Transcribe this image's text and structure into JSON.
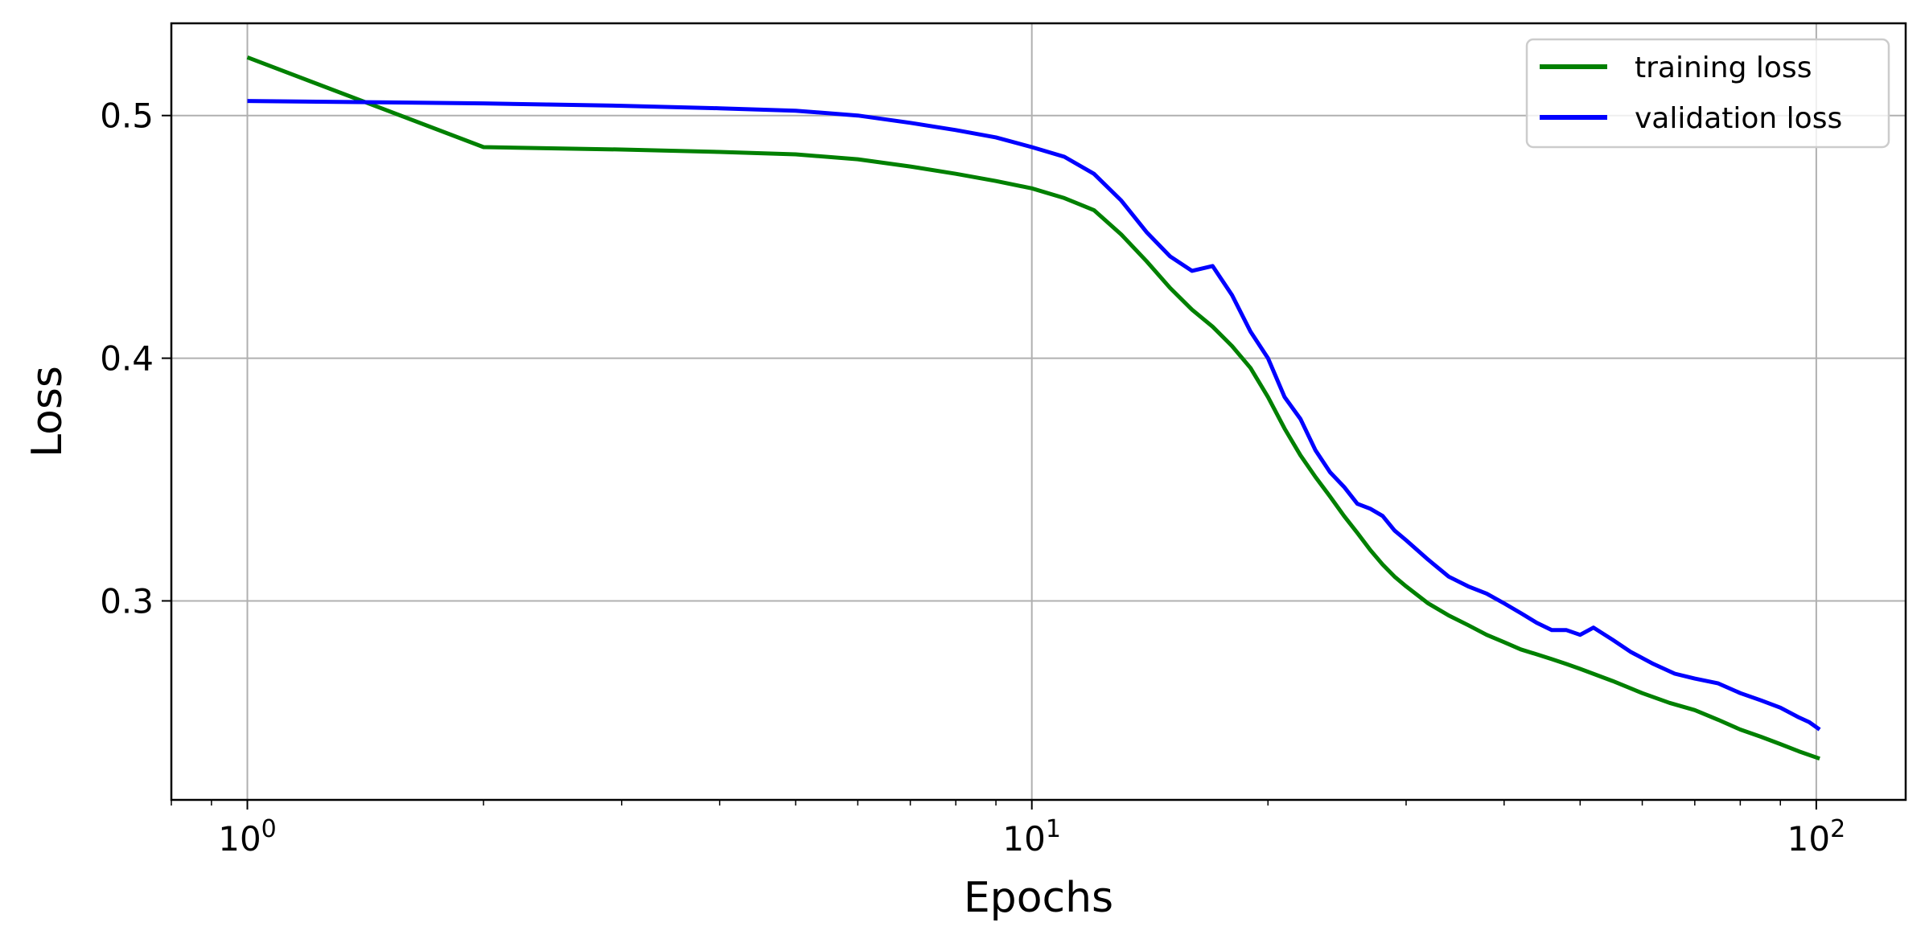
{
  "chart_data": {
    "type": "line",
    "xscale": "log",
    "xlabel": "Epochs",
    "ylabel": "Loss",
    "xlim": [
      0.8,
      130
    ],
    "ylim": [
      0.218,
      0.538
    ],
    "grid": true,
    "legend_position": "top-right",
    "x_ticks": [
      {
        "base": "10",
        "exp": "0",
        "value": 1
      },
      {
        "base": "10",
        "exp": "1",
        "value": 10
      },
      {
        "base": "10",
        "exp": "2",
        "value": 100
      }
    ],
    "y_ticks": [
      {
        "label": "0.3",
        "value": 0.3
      },
      {
        "label": "0.4",
        "value": 0.4
      },
      {
        "label": "0.5",
        "value": 0.5
      }
    ],
    "series": [
      {
        "name": "training loss",
        "color": "#008000",
        "points": [
          [
            1,
            0.524
          ],
          [
            2,
            0.487
          ],
          [
            3,
            0.486
          ],
          [
            4,
            0.485
          ],
          [
            5,
            0.484
          ],
          [
            6,
            0.482
          ],
          [
            7,
            0.479
          ],
          [
            8,
            0.476
          ],
          [
            9,
            0.473
          ],
          [
            10,
            0.47
          ],
          [
            11,
            0.466
          ],
          [
            12,
            0.461
          ],
          [
            13,
            0.451
          ],
          [
            14,
            0.44
          ],
          [
            15,
            0.429
          ],
          [
            16,
            0.42
          ],
          [
            17,
            0.413
          ],
          [
            18,
            0.405
          ],
          [
            19,
            0.396
          ],
          [
            20,
            0.384
          ],
          [
            21,
            0.371
          ],
          [
            22,
            0.36
          ],
          [
            23,
            0.351
          ],
          [
            24,
            0.343
          ],
          [
            25,
            0.335
          ],
          [
            26,
            0.328
          ],
          [
            27,
            0.321
          ],
          [
            28,
            0.315
          ],
          [
            29,
            0.31
          ],
          [
            30,
            0.306
          ],
          [
            32,
            0.299
          ],
          [
            34,
            0.294
          ],
          [
            36,
            0.29
          ],
          [
            38,
            0.286
          ],
          [
            40,
            0.283
          ],
          [
            42,
            0.28
          ],
          [
            44,
            0.278
          ],
          [
            46,
            0.276
          ],
          [
            48,
            0.274
          ],
          [
            50,
            0.272
          ],
          [
            55,
            0.267
          ],
          [
            60,
            0.262
          ],
          [
            65,
            0.258
          ],
          [
            70,
            0.255
          ],
          [
            75,
            0.251
          ],
          [
            80,
            0.247
          ],
          [
            85,
            0.244
          ],
          [
            90,
            0.241
          ],
          [
            95,
            0.238
          ],
          [
            101,
            0.235
          ]
        ]
      },
      {
        "name": "validation loss",
        "color": "#0000ff",
        "points": [
          [
            1,
            0.506
          ],
          [
            2,
            0.505
          ],
          [
            3,
            0.504
          ],
          [
            4,
            0.503
          ],
          [
            5,
            0.502
          ],
          [
            6,
            0.5
          ],
          [
            7,
            0.497
          ],
          [
            8,
            0.494
          ],
          [
            9,
            0.491
          ],
          [
            10,
            0.487
          ],
          [
            11,
            0.483
          ],
          [
            12,
            0.476
          ],
          [
            13,
            0.465
          ],
          [
            14,
            0.452
          ],
          [
            15,
            0.442
          ],
          [
            16,
            0.436
          ],
          [
            17,
            0.438
          ],
          [
            18,
            0.426
          ],
          [
            19,
            0.411
          ],
          [
            20,
            0.4
          ],
          [
            21,
            0.384
          ],
          [
            22,
            0.375
          ],
          [
            23,
            0.362
          ],
          [
            24,
            0.353
          ],
          [
            25,
            0.347
          ],
          [
            26,
            0.34
          ],
          [
            27,
            0.338
          ],
          [
            28,
            0.335
          ],
          [
            29,
            0.329
          ],
          [
            30,
            0.325
          ],
          [
            32,
            0.317
          ],
          [
            34,
            0.31
          ],
          [
            36,
            0.306
          ],
          [
            38,
            0.303
          ],
          [
            40,
            0.299
          ],
          [
            42,
            0.295
          ],
          [
            44,
            0.291
          ],
          [
            46,
            0.288
          ],
          [
            48,
            0.288
          ],
          [
            50,
            0.286
          ],
          [
            52,
            0.289
          ],
          [
            55,
            0.284
          ],
          [
            58,
            0.279
          ],
          [
            62,
            0.274
          ],
          [
            66,
            0.27
          ],
          [
            70,
            0.268
          ],
          [
            75,
            0.266
          ],
          [
            80,
            0.262
          ],
          [
            85,
            0.259
          ],
          [
            90,
            0.256
          ],
          [
            95,
            0.252
          ],
          [
            98,
            0.25
          ],
          [
            101,
            0.247
          ]
        ]
      }
    ]
  }
}
